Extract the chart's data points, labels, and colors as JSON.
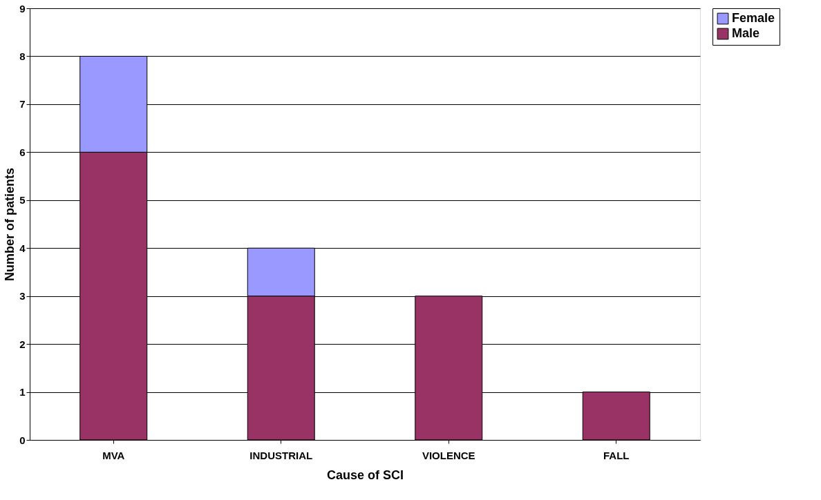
{
  "chart_data": {
    "type": "bar",
    "stacked": true,
    "xlabel": "Cause of SCI",
    "ylabel": "Number of patients",
    "categories": [
      "MVA",
      "INDUSTRIAL",
      "VIOLENCE",
      "FALL"
    ],
    "series": [
      {
        "name": "Male",
        "color": "#993366",
        "values": [
          6,
          3,
          3,
          1
        ]
      },
      {
        "name": "Female",
        "color": "#9999ff",
        "values": [
          2,
          1,
          null,
          null
        ]
      }
    ],
    "ylim": [
      0,
      9
    ],
    "yticks": [
      0,
      1,
      2,
      3,
      4,
      5,
      6,
      7,
      8,
      9
    ],
    "grid": "y",
    "legend": "right"
  }
}
